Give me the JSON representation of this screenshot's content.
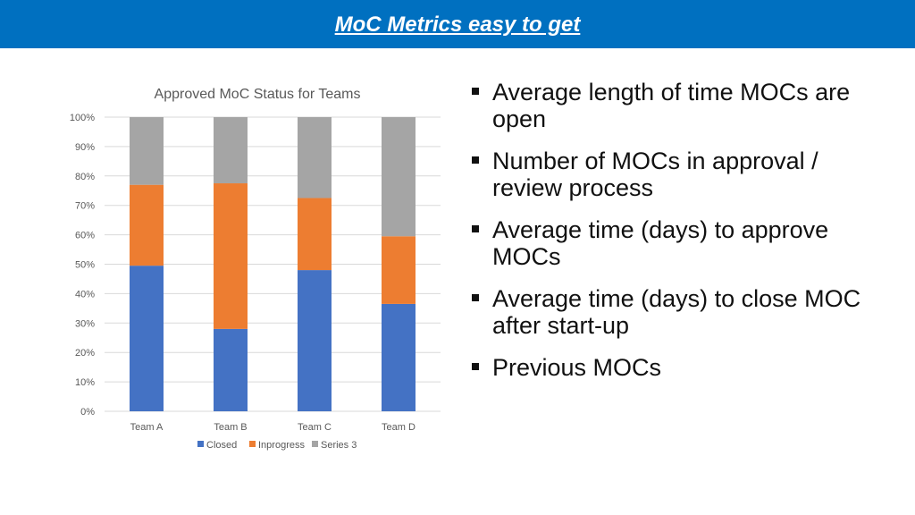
{
  "slide": {
    "title": "MoC Metrics easy to get",
    "bullets": [
      "Average length of time MOCs are open",
      "Number of MOCs in approval / review process",
      "Average time (days) to approve MOCs",
      "Average time (days) to close MOC after start-up",
      "Previous MOCs"
    ]
  },
  "chart_data": {
    "type": "bar",
    "stacked": true,
    "title": "Approved MoC Status for Teams",
    "categories": [
      "Team A",
      "Team B",
      "Team C",
      "Team D"
    ],
    "series": [
      {
        "name": "Closed",
        "values": [
          49.5,
          28,
          48,
          36.5
        ],
        "color": "#4472c4"
      },
      {
        "name": "Inprogress",
        "values": [
          27.5,
          49.5,
          24.5,
          23
        ],
        "color": "#ed7d31"
      },
      {
        "name": "Series 3",
        "values": [
          23,
          22.5,
          27.5,
          40.5
        ],
        "color": "#a5a5a5"
      }
    ],
    "yticks": [
      "0%",
      "10%",
      "20%",
      "30%",
      "40%",
      "50%",
      "60%",
      "70%",
      "80%",
      "90%",
      "100%"
    ],
    "ylim": [
      0,
      100
    ],
    "grid": true,
    "legend": "bottom"
  }
}
